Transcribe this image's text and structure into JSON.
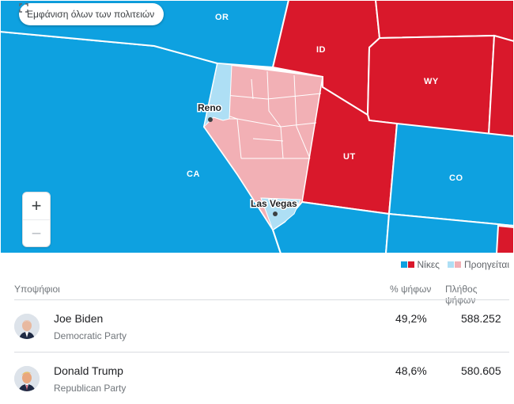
{
  "map": {
    "show_all_label": "Εμφάνιση όλων των πολιτειών",
    "states": [
      "OR",
      "ID",
      "WY",
      "UT",
      "CO",
      "CA"
    ],
    "cities": [
      "Reno",
      "Las Vegas"
    ],
    "colors": {
      "dem_win": "#0ea1e0",
      "rep_win": "#d9182b",
      "dem_lead": "#aedff5",
      "rep_lead": "#f2b0b5",
      "border": "#ffffff"
    },
    "zoom_in_label": "+",
    "zoom_out_label": "−"
  },
  "legend": {
    "wins_label": "Νίκες",
    "leading_label": "Προηγείται"
  },
  "table": {
    "headers": {
      "candidates": "Υποψήφιοι",
      "percent": "% ψήφων",
      "votes": "Πλήθος ψήφων"
    },
    "rows": [
      {
        "name": "Joe Biden",
        "party": "Democratic Party",
        "percent": "49,2%",
        "votes": "588.252",
        "portrait": "biden-portrait"
      },
      {
        "name": "Donald Trump",
        "party": "Republican Party",
        "percent": "48,6%",
        "votes": "580.605",
        "portrait": "trump-portrait"
      }
    ]
  }
}
